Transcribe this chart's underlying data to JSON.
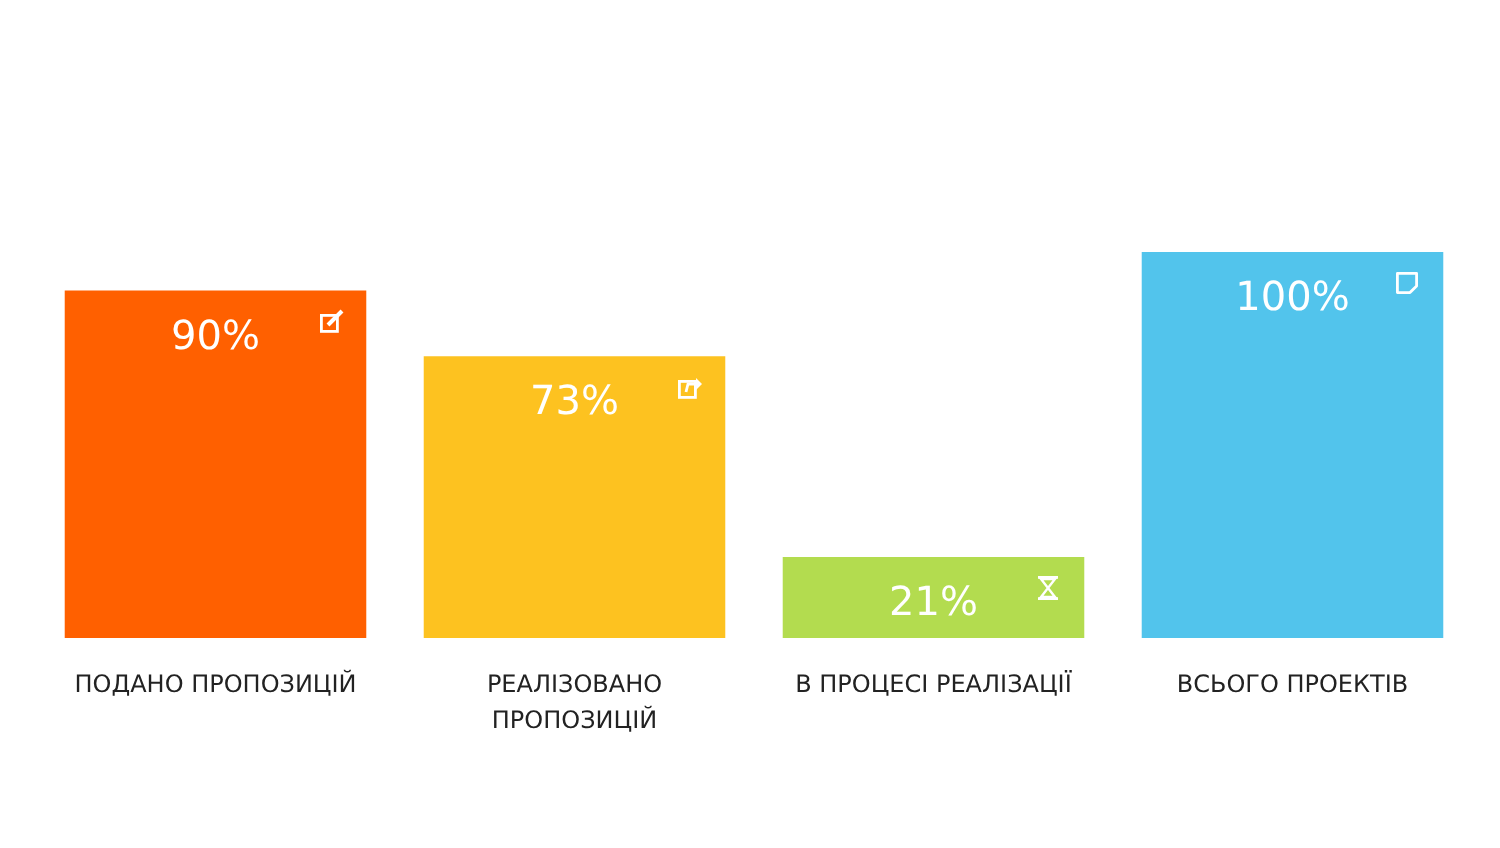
{
  "chart_data": {
    "type": "bar",
    "categories": [
      "ПОДАНО ПРОПОЗИЦІЙ",
      "РЕАЛІЗОВАНО ПРОПОЗИЦІЙ",
      "В ПРОЦЕСІ РЕАЛІЗАЦІЇ",
      "ВСЬОГО ПРОЕКТІВ"
    ],
    "values": [
      90,
      73,
      21,
      100
    ],
    "colors": [
      "#ff6000",
      "#fdc220",
      "#b3dc4f",
      "#52c4ec"
    ],
    "value_labels": [
      "90%",
      "73%",
      "21%",
      "100%"
    ]
  }
}
